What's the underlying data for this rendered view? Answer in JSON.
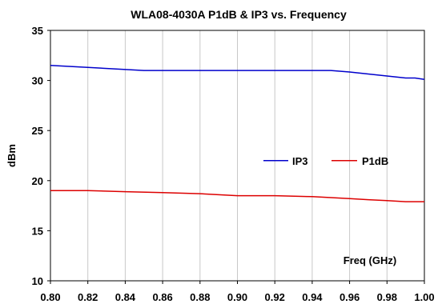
{
  "chart_data": {
    "type": "line",
    "title": "WLA08-4030A P1dB & IP3 vs. Frequency",
    "xlabel": "Freq (GHz)",
    "ylabel": "dBm",
    "xlim": [
      0.8,
      1.0
    ],
    "ylim": [
      10,
      35
    ],
    "x_ticks": [
      "0.80",
      "0.82",
      "0.84",
      "0.86",
      "0.88",
      "0.90",
      "0.92",
      "0.94",
      "0.96",
      "0.98",
      "1.00"
    ],
    "y_ticks": [
      "10",
      "15",
      "20",
      "25",
      "30",
      "35"
    ],
    "grid": {
      "vertical": true,
      "horizontal": false
    },
    "legend_position": "center-right",
    "series": [
      {
        "name": "IP3",
        "color": "#0000cc",
        "x": [
          0.8,
          0.82,
          0.85,
          0.88,
          0.9,
          0.92,
          0.95,
          0.96,
          0.97,
          0.98,
          0.99,
          0.995,
          1.0
        ],
        "values": [
          31.5,
          31.3,
          31.0,
          31.0,
          31.0,
          31.0,
          31.0,
          30.85,
          30.65,
          30.45,
          30.25,
          30.25,
          30.1
        ]
      },
      {
        "name": "P1dB",
        "color": "#dd0000",
        "x": [
          0.8,
          0.82,
          0.84,
          0.86,
          0.88,
          0.9,
          0.92,
          0.94,
          0.96,
          0.97,
          0.98,
          0.99,
          1.0
        ],
        "values": [
          19.0,
          19.0,
          18.9,
          18.8,
          18.7,
          18.5,
          18.5,
          18.4,
          18.2,
          18.1,
          18.0,
          17.9,
          17.9
        ]
      }
    ]
  }
}
